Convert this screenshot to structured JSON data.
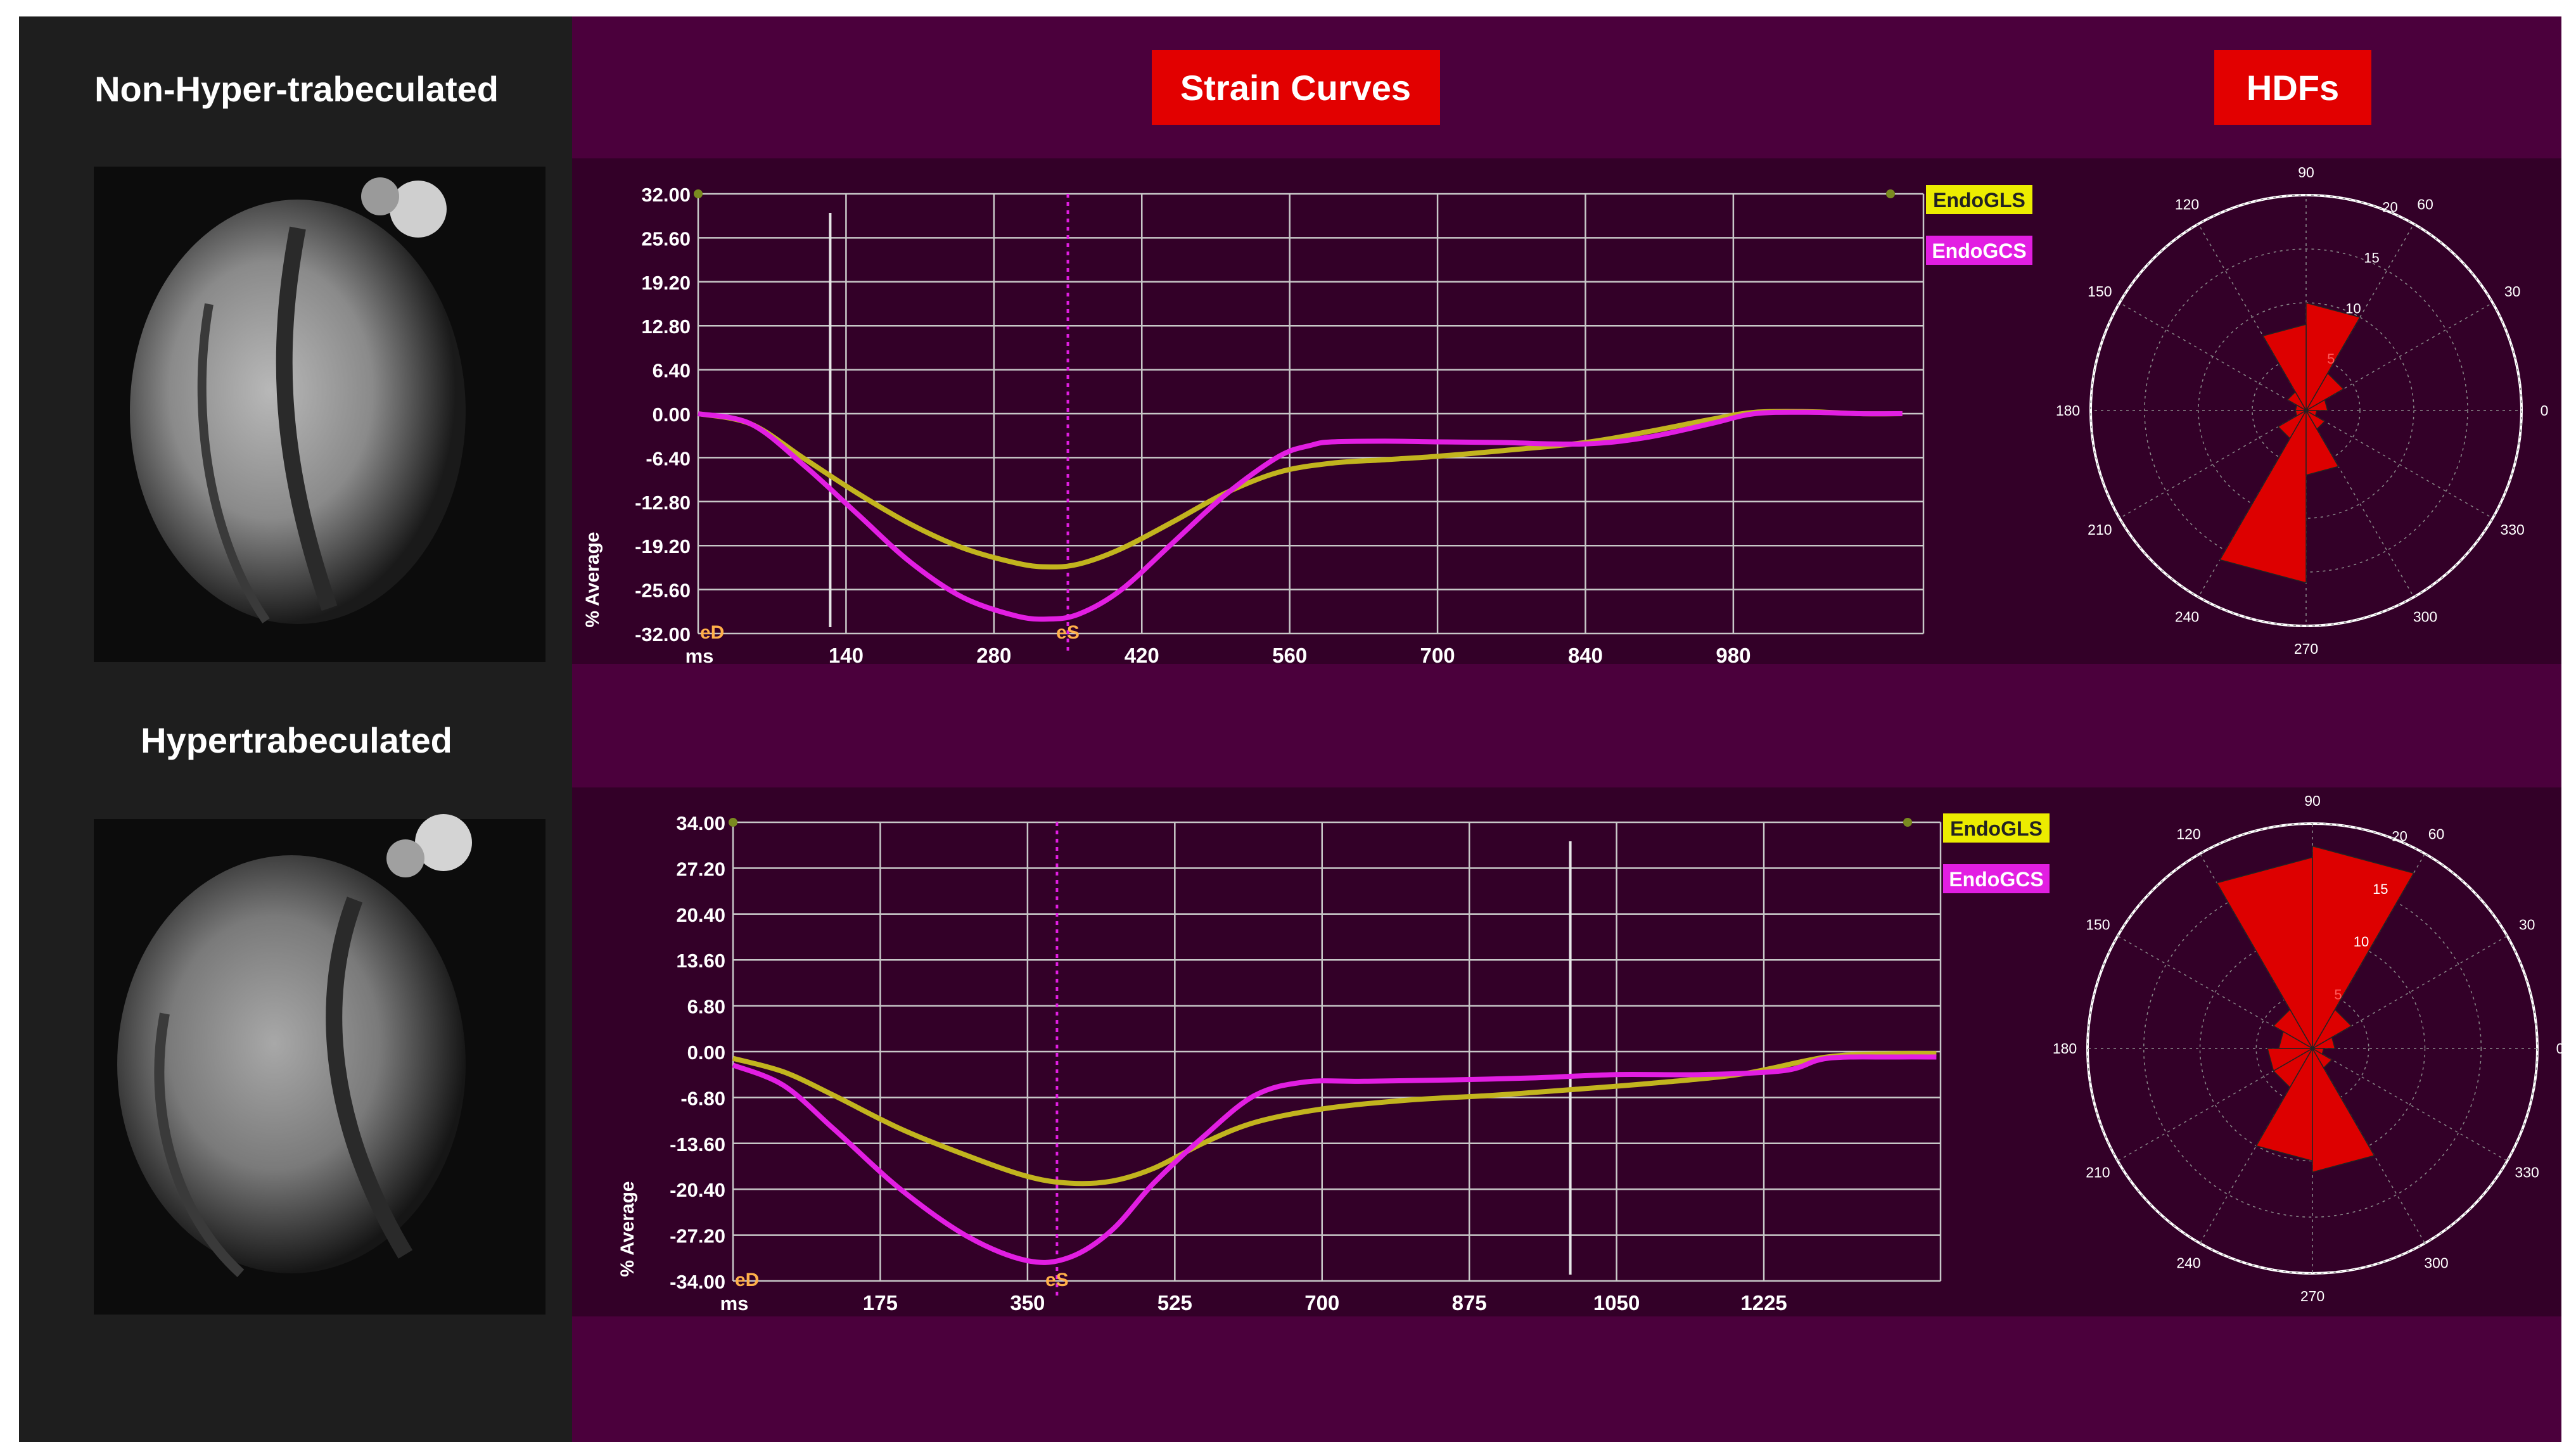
{
  "left_panel": {
    "top_label": "Non-Hyper-trabeculated",
    "bottom_label": "Hypertrabeculated"
  },
  "headers": {
    "strain": "Strain Curves",
    "hdf": "HDFs"
  },
  "colors": {
    "page_bg": "#ffffff",
    "left_bg": "#1e1e1e",
    "right_bg": "#4b003c",
    "plot_bg": "#330028",
    "grid": "#c8c8c8",
    "header_red": "#e20000",
    "gls": "#c2b41e",
    "gcs": "#e21ee2",
    "label_orange": "#ffb04a",
    "polar_bg": "#330028",
    "petal": "#dd0000"
  },
  "chart_data": [
    {
      "type": "line",
      "id": "strain-top",
      "ylabel": "% Average",
      "xunit": "ms",
      "xlim": [
        0,
        1160
      ],
      "ylim": [
        -32,
        32
      ],
      "xticks": [
        140,
        280,
        420,
        560,
        700,
        840,
        980
      ],
      "xtick_labels": [
        "140",
        "280",
        "420",
        "560",
        "700",
        "840",
        "980"
      ],
      "yticks": [
        32,
        25.6,
        19.2,
        12.8,
        6.4,
        0,
        -6.4,
        -12.8,
        -19.2,
        -25.6,
        -32
      ],
      "ytick_labels": [
        "32.00",
        "25.60",
        "19.20",
        "12.80",
        "6.40",
        "0.00",
        "-6.40",
        "-12.80",
        "-19.20",
        "-25.60",
        "-32.00"
      ],
      "markers": {
        "eD": {
          "label": "eD",
          "x": 0
        },
        "eS": {
          "label": "eS",
          "x": 350
        },
        "cursor_x": 125
      },
      "legend": [
        "EndoGLS",
        "EndoGCS"
      ],
      "series": [
        {
          "name": "EndoGLS",
          "color": "#c2b41e",
          "x": [
            0,
            50,
            100,
            150,
            200,
            250,
            300,
            330,
            360,
            400,
            450,
            500,
            550,
            600,
            650,
            700,
            760,
            840,
            900,
            960,
            1000,
            1050,
            1100,
            1140
          ],
          "y": [
            0,
            -1.5,
            -6.5,
            -11.5,
            -16,
            -19.5,
            -21.7,
            -22.3,
            -21.9,
            -19.7,
            -15.7,
            -11.5,
            -8.5,
            -7.2,
            -6.7,
            -6.2,
            -5.4,
            -4.2,
            -2.6,
            -0.8,
            0.2,
            0.3,
            0,
            0
          ]
        },
        {
          "name": "EndoGCS",
          "color": "#e21ee2",
          "x": [
            0,
            50,
            100,
            150,
            200,
            250,
            300,
            330,
            360,
            400,
            450,
            500,
            550,
            580,
            600,
            650,
            700,
            760,
            840,
            900,
            960,
            1000,
            1050,
            1100,
            1140
          ],
          "y": [
            0,
            -1.5,
            -7.5,
            -14.5,
            -21.5,
            -26.7,
            -29.4,
            -29.9,
            -29.2,
            -25.7,
            -18.7,
            -11.7,
            -6.2,
            -4.6,
            -4.1,
            -4,
            -4.1,
            -4.2,
            -4.4,
            -3.4,
            -1.4,
            0,
            0.2,
            0,
            0
          ]
        }
      ]
    },
    {
      "type": "line",
      "id": "strain-bottom",
      "ylabel": "% Average",
      "xunit": "ms",
      "xlim": [
        0,
        1435
      ],
      "ylim": [
        -34,
        34
      ],
      "xticks": [
        175,
        350,
        525,
        700,
        875,
        1050,
        1225
      ],
      "xtick_labels": [
        "175",
        "350",
        "525",
        "700",
        "875",
        "1050",
        "1225"
      ],
      "yticks": [
        34,
        27.2,
        20.4,
        13.6,
        6.8,
        0,
        -6.8,
        -13.6,
        -20.4,
        -27.2,
        -34
      ],
      "ytick_labels": [
        "34.00",
        "27.20",
        "20.40",
        "13.60",
        "6.80",
        "0.00",
        "-6.80",
        "-13.60",
        "-20.40",
        "-27.20",
        "-34.00"
      ],
      "markers": {
        "eD": {
          "label": "eD",
          "x": 0
        },
        "eS": {
          "label": "eS",
          "x": 385
        },
        "cursor_x": 995
      },
      "legend": [
        "EndoGLS",
        "EndoGCS"
      ],
      "series": [
        {
          "name": "EndoGLS",
          "color": "#c2b41e",
          "x": [
            0,
            60,
            120,
            200,
            280,
            350,
            400,
            450,
            500,
            560,
            620,
            700,
            800,
            900,
            1000,
            1100,
            1200,
            1300,
            1380,
            1430
          ],
          "y": [
            -1,
            -3,
            -6.5,
            -11.5,
            -15.5,
            -18.5,
            -19.5,
            -19.2,
            -17.3,
            -13.5,
            -10.5,
            -8.5,
            -7.2,
            -6.5,
            -5.6,
            -4.6,
            -3.3,
            -0.8,
            -0.3,
            -0.3
          ]
        },
        {
          "name": "EndoGCS",
          "color": "#e21ee2",
          "x": [
            0,
            60,
            120,
            200,
            280,
            350,
            400,
            450,
            500,
            560,
            620,
            680,
            750,
            850,
            950,
            1050,
            1150,
            1250,
            1300,
            1380,
            1430
          ],
          "y": [
            -2,
            -5,
            -11.5,
            -20.5,
            -27.5,
            -31,
            -30.5,
            -26.5,
            -19.5,
            -12.5,
            -6.5,
            -4.5,
            -4.4,
            -4.2,
            -3.9,
            -3.4,
            -3.4,
            -2.8,
            -1,
            -0.8,
            -0.8
          ]
        }
      ]
    },
    {
      "type": "polar-histogram",
      "id": "hdf-top",
      "angle_labels": [
        "90",
        "60",
        "30",
        "0",
        "330",
        "300",
        "270",
        "240",
        "210",
        "180",
        "150",
        "120"
      ],
      "radial_ticks": [
        5,
        10,
        15,
        20
      ],
      "radial_labels": [
        "5",
        "10",
        "15",
        "20"
      ],
      "rmax": 20,
      "bins": [
        {
          "angle": 15,
          "value": 2
        },
        {
          "angle": 45,
          "value": 4
        },
        {
          "angle": 75,
          "value": 10
        },
        {
          "angle": 105,
          "value": 8
        },
        {
          "angle": 135,
          "value": 2
        },
        {
          "angle": 165,
          "value": 1
        },
        {
          "angle": 195,
          "value": 1
        },
        {
          "angle": 225,
          "value": 3
        },
        {
          "angle": 255,
          "value": 16
        },
        {
          "angle": 285,
          "value": 6
        },
        {
          "angle": 315,
          "value": 2
        },
        {
          "angle": 345,
          "value": 1
        }
      ]
    },
    {
      "type": "polar-histogram",
      "id": "hdf-bottom",
      "angle_labels": [
        "90",
        "60",
        "30",
        "0",
        "330",
        "300",
        "270",
        "240",
        "210",
        "180",
        "150",
        "120"
      ],
      "radial_ticks": [
        5,
        10,
        15,
        20
      ],
      "radial_labels": [
        "5",
        "10",
        "15",
        "20"
      ],
      "rmax": 20,
      "bins": [
        {
          "angle": 15,
          "value": 2
        },
        {
          "angle": 45,
          "value": 4
        },
        {
          "angle": 75,
          "value": 18
        },
        {
          "angle": 105,
          "value": 17
        },
        {
          "angle": 135,
          "value": 4
        },
        {
          "angle": 165,
          "value": 3
        },
        {
          "angle": 195,
          "value": 4
        },
        {
          "angle": 225,
          "value": 4
        },
        {
          "angle": 255,
          "value": 10
        },
        {
          "angle": 285,
          "value": 11
        },
        {
          "angle": 315,
          "value": 2
        },
        {
          "angle": 345,
          "value": 1
        }
      ]
    }
  ]
}
